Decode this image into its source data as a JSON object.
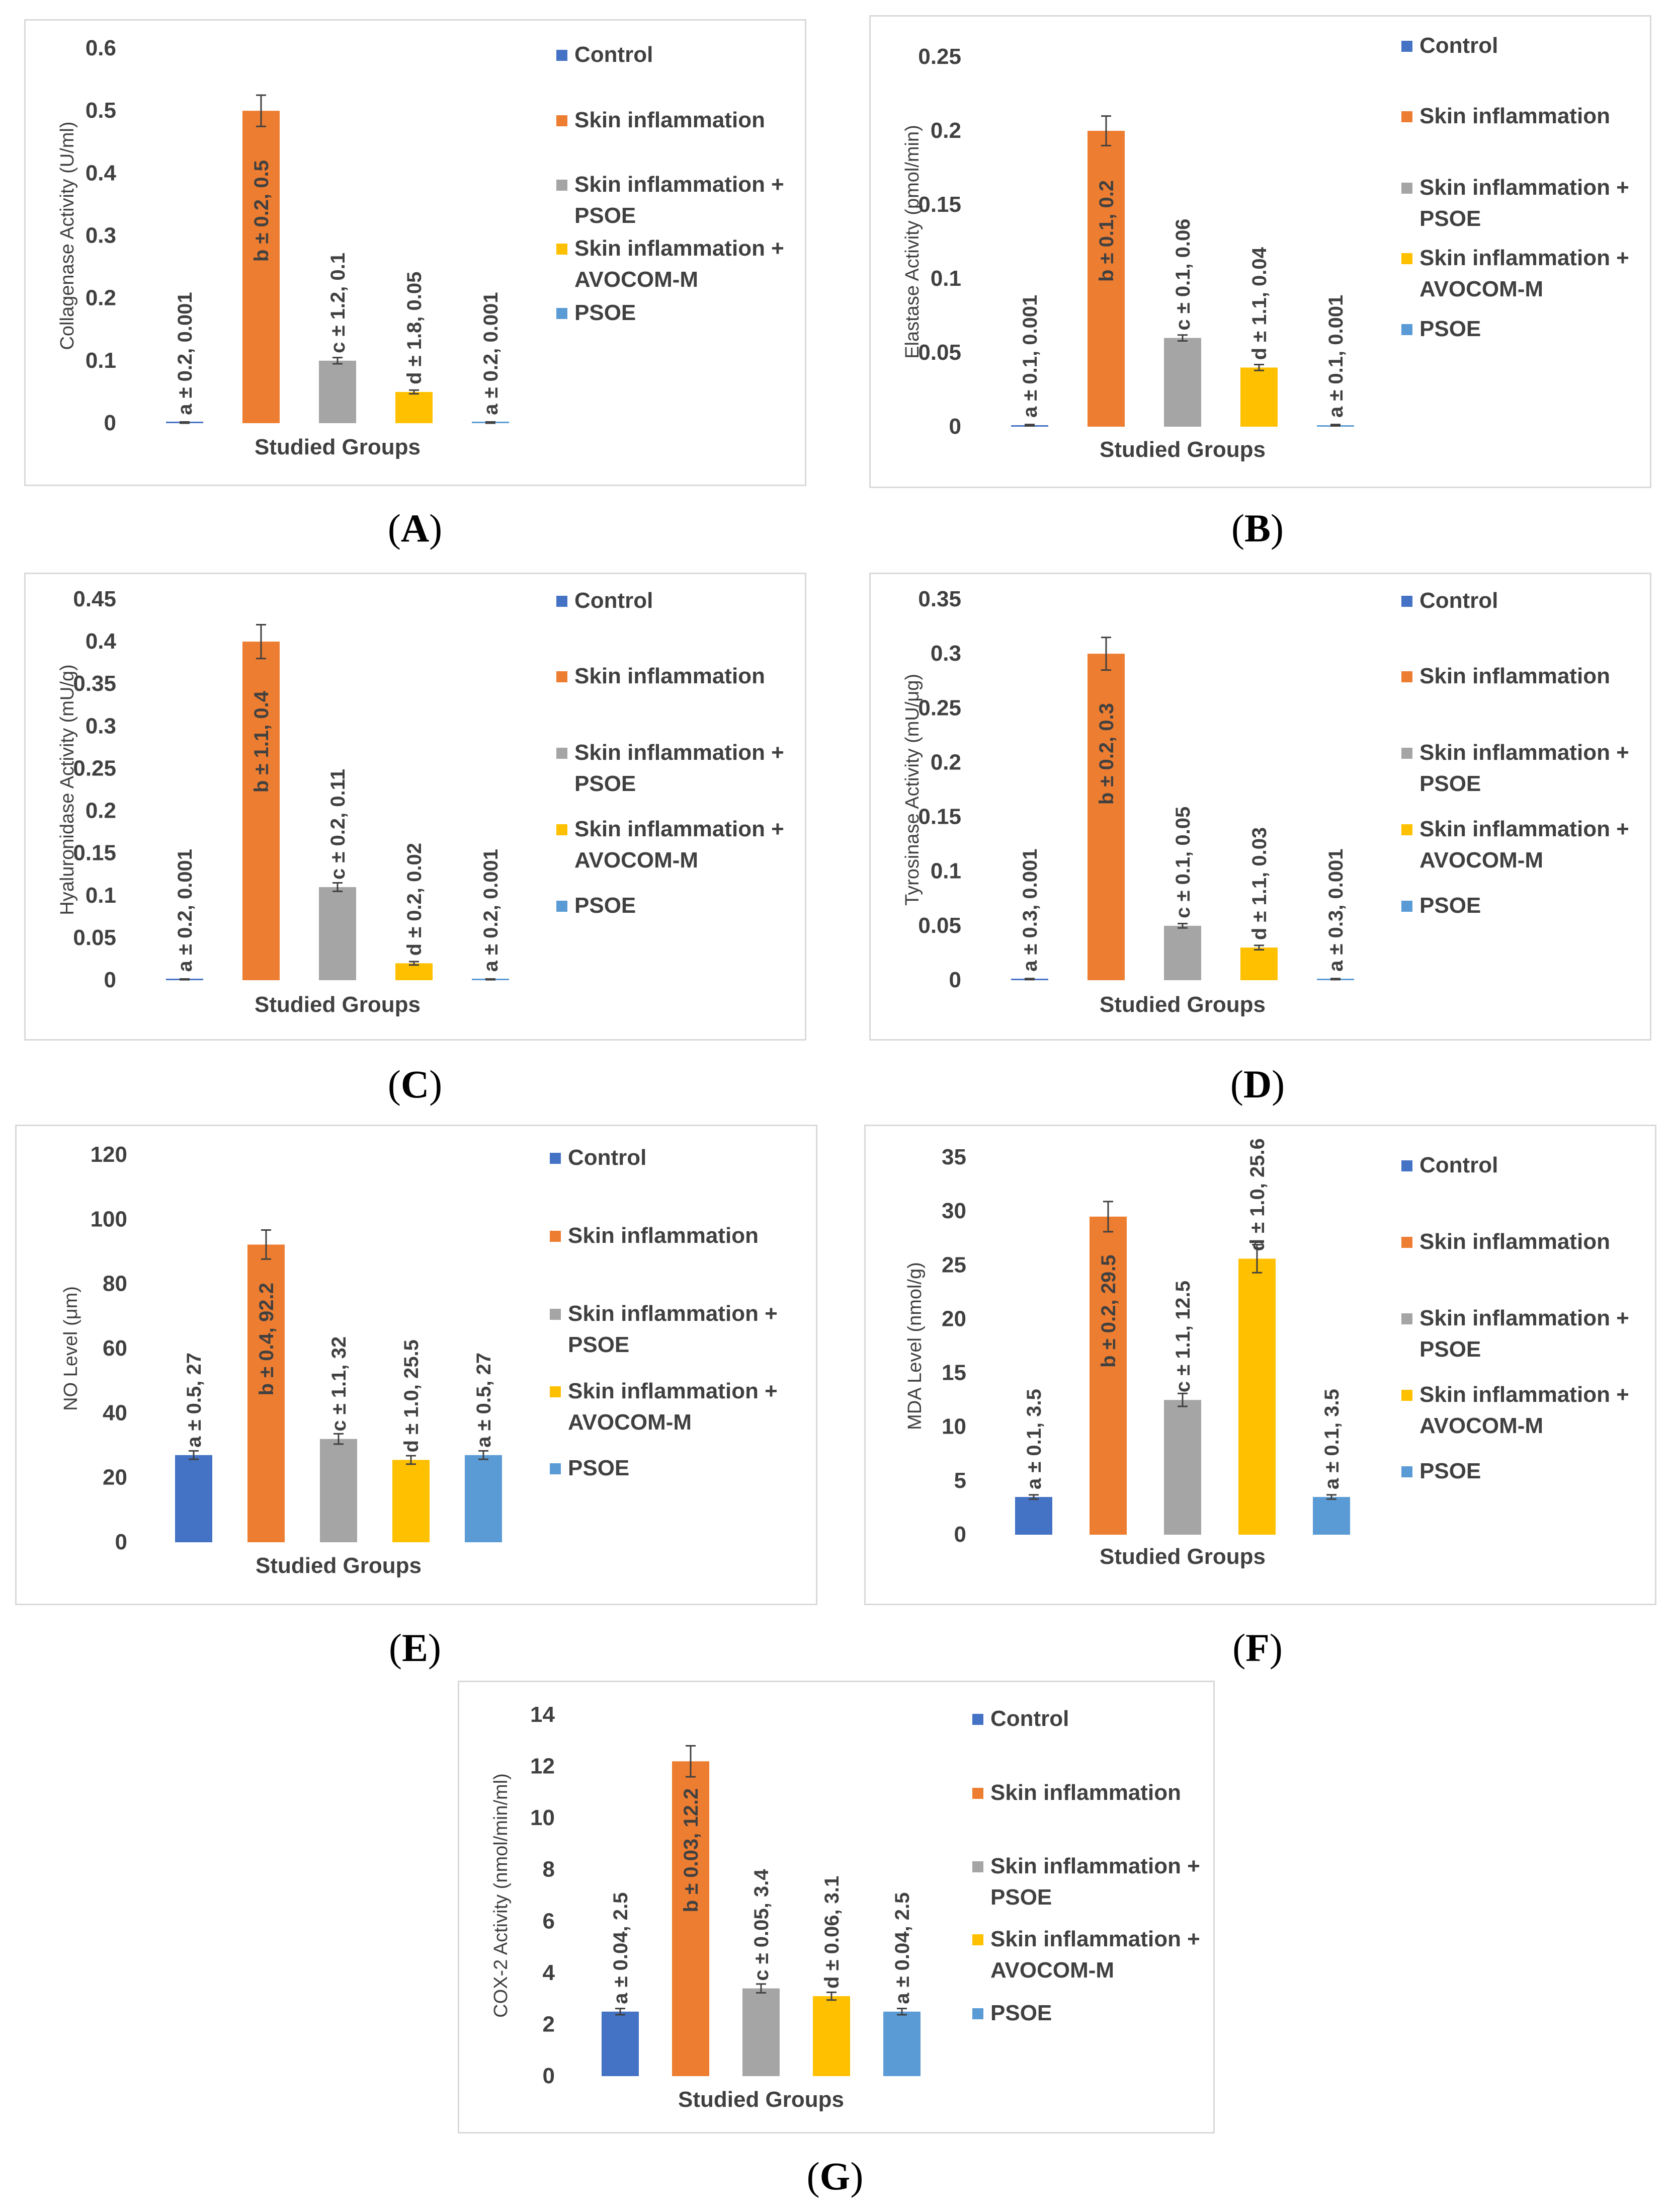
{
  "legend": {
    "entries": [
      {
        "label_lines": [
          "Control"
        ],
        "color": "#4472C4"
      },
      {
        "label_lines": [
          "Skin inflammation"
        ],
        "color": "#ED7D31"
      },
      {
        "label_lines": [
          "Skin inflammation +",
          "PSOE"
        ],
        "color": "#A5A5A5"
      },
      {
        "label_lines": [
          "Skin inflammation +",
          "AVOCOM-M"
        ],
        "color": "#FFC000"
      },
      {
        "label_lines": [
          "PSOE"
        ],
        "color": "#5B9BD5"
      }
    ]
  },
  "chart_data": [
    {
      "panel": "A",
      "caption_letter": "A",
      "type": "bar",
      "title": "",
      "xlabel": "Studied Groups",
      "ylabel": "Collagenase Activity (U/ml)",
      "categories": [
        "Control",
        "Skin inflammation",
        "Skin inflammation + PSOE",
        "Skin inflammation + AVOCOM-M",
        "PSOE"
      ],
      "values": [
        0.001,
        0.5,
        0.1,
        0.05,
        0.001
      ],
      "errors": [
        0.001,
        0.025,
        0.005,
        0.003,
        0.001
      ],
      "yticks": [
        "0",
        "0.1",
        "0.2",
        "0.3",
        "0.4",
        "0.5",
        "0.6"
      ],
      "ylim": [
        0,
        0.6
      ],
      "data_labels": [
        "a ± 0.2, 0.001",
        "b ± 0.2, 0.5",
        "c ± 1.2, 0.1",
        "d ± 1.8, 0.05",
        "a ± 0.2, 0.001"
      ]
    },
    {
      "panel": "B",
      "caption_letter": "B",
      "type": "bar",
      "title": "",
      "xlabel": "Studied Groups",
      "ylabel": "Elastase Activity (pmol/min)",
      "categories": [
        "Control",
        "Skin inflammation",
        "Skin inflammation + PSOE",
        "Skin inflammation + AVOCOM-M",
        "PSOE"
      ],
      "values": [
        0.001,
        0.2,
        0.06,
        0.04,
        0.001
      ],
      "errors": [
        0.0005,
        0.01,
        0.002,
        0.002,
        0.0005
      ],
      "yticks": [
        "0",
        "0.05",
        "0.1",
        "0.15",
        "0.2",
        "0.25"
      ],
      "ylim": [
        0,
        0.25
      ],
      "data_labels": [
        "a ± 0.1, 0.001",
        "b ± 0.1, 0.2",
        "c ± 0.1, 0.06",
        "d ± 1.1, 0.04",
        "a ± 0.1, 0.001"
      ]
    },
    {
      "panel": "C",
      "caption_letter": "C",
      "type": "bar",
      "title": "",
      "xlabel": "Studied Groups",
      "ylabel": "Hyaluronidase Activity (mU/g)",
      "categories": [
        "Control",
        "Skin inflammation",
        "Skin inflammation + PSOE",
        "Skin inflammation + AVOCOM-M",
        "PSOE"
      ],
      "values": [
        0.001,
        0.4,
        0.11,
        0.02,
        0.001
      ],
      "errors": [
        0.0005,
        0.02,
        0.005,
        0.002,
        0.0005
      ],
      "yticks": [
        "0",
        "0.05",
        "0.1",
        "0.15",
        "0.2",
        "0.25",
        "0.3",
        "0.35",
        "0.4",
        "0.45"
      ],
      "ylim": [
        0,
        0.45
      ],
      "data_labels": [
        "a ± 0.2, 0.001",
        "b ± 1.1, 0.4",
        "c ± 0.2, 0.11",
        "d ± 0.2, 0.02",
        "a ± 0.2, 0.001"
      ]
    },
    {
      "panel": "D",
      "caption_letter": "D",
      "type": "bar",
      "title": "",
      "xlabel": "Studied Groups",
      "ylabel": "Tyrosinase Activity (mU/μg)",
      "categories": [
        "Control",
        "Skin inflammation",
        "Skin inflammation + PSOE",
        "Skin inflammation + AVOCOM-M",
        "PSOE"
      ],
      "values": [
        0.001,
        0.3,
        0.05,
        0.03,
        0.001
      ],
      "errors": [
        0.0005,
        0.015,
        0.002,
        0.002,
        0.0005
      ],
      "yticks": [
        "0",
        "0.05",
        "0.1",
        "0.15",
        "0.2",
        "0.25",
        "0.3",
        "0.35"
      ],
      "ylim": [
        0,
        0.35
      ],
      "data_labels": [
        "a ± 0.3, 0.001",
        "b ± 0.2, 0.3",
        "c ± 0.1, 0.05",
        "d ± 1.1, 0.03",
        "a ± 0.3, 0.001"
      ]
    },
    {
      "panel": "E",
      "caption_letter": "E",
      "type": "bar",
      "title": "",
      "xlabel": "Studied Groups",
      "ylabel": "NO Level (μm)",
      "categories": [
        "Control",
        "Skin inflammation",
        "Skin inflammation + PSOE",
        "Skin inflammation + AVOCOM-M",
        "PSOE"
      ],
      "values": [
        27,
        92.2,
        32,
        25.5,
        27
      ],
      "errors": [
        1.3,
        4.5,
        1.6,
        1.3,
        1.3
      ],
      "yticks": [
        "0",
        "20",
        "40",
        "60",
        "80",
        "100",
        "120"
      ],
      "ylim": [
        0,
        120
      ],
      "data_labels": [
        "a ± 0.5, 27",
        "b ± 0.4, 92.2",
        "c ± 1.1, 32",
        "d ± 1.0, 25.5",
        "a ± 0.5, 27"
      ]
    },
    {
      "panel": "F",
      "caption_letter": "F",
      "type": "bar",
      "title": "",
      "xlabel": "Studied Groups",
      "ylabel": "MDA Level (nmol/g)",
      "categories": [
        "Control",
        "Skin inflammation",
        "Skin inflammation + PSOE",
        "Skin inflammation + AVOCOM-M",
        "PSOE"
      ],
      "values": [
        3.5,
        29.5,
        12.5,
        25.6,
        3.5
      ],
      "errors": [
        0.2,
        1.4,
        0.6,
        1.3,
        0.2
      ],
      "yticks": [
        "0",
        "5",
        "10",
        "15",
        "20",
        "25",
        "30",
        "35"
      ],
      "ylim": [
        0,
        35
      ],
      "data_labels": [
        "a ± 0.1, 3.5",
        "b ± 0.2, 29.5",
        "c ± 1.1, 12.5",
        "d ± 1.0, 25.6",
        "a ± 0.1, 3.5"
      ]
    },
    {
      "panel": "G",
      "caption_letter": "G",
      "type": "bar",
      "title": "",
      "xlabel": "Studied Groups",
      "ylabel": "COX-2 Activity (nmol/min/ml)",
      "categories": [
        "Control",
        "Skin inflammation",
        "Skin inflammation + PSOE",
        "Skin inflammation + AVOCOM-M",
        "PSOE"
      ],
      "values": [
        2.5,
        12.2,
        3.4,
        3.1,
        2.5
      ],
      "errors": [
        0.12,
        0.6,
        0.17,
        0.15,
        0.12
      ],
      "yticks": [
        "0",
        "2",
        "4",
        "6",
        "8",
        "10",
        "12",
        "14"
      ],
      "ylim": [
        0,
        14
      ],
      "data_labels": [
        "a ± 0.04, 2.5",
        "b ± 0.03, 12.2",
        "c ± 0.05, 3.4",
        "d ± 0.06, 3.1",
        "a ± 0.04, 2.5"
      ]
    }
  ]
}
